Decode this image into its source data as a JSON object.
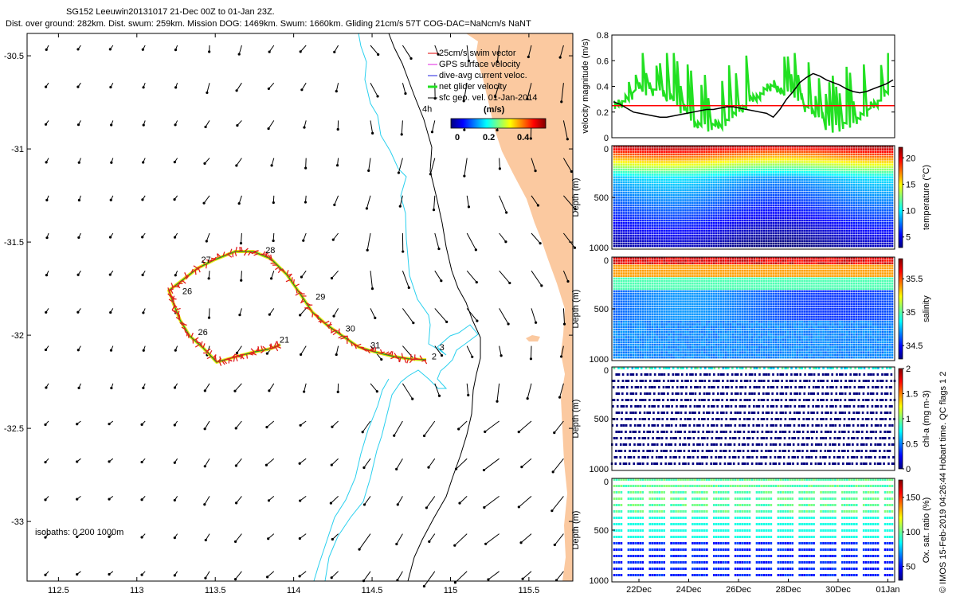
{
  "header": {
    "title_line1": "SG152 Leeuwin20131017 21-Dec 00Z to 01-Jan 23Z.",
    "title_line2": "Dist. over ground: 282km. Dist. swum: 259km. Mission DOG: 1469km. Swum: 1660km. Gliding 21cm/s 57T COG-DAC=NaNcm/s NaNT"
  },
  "credit": "© IMOS 15-Feb-2019 04:26:44 Hobart time. QC flags 1  2",
  "colors": {
    "land": "#fbc9a0",
    "isobath_200": "#2ad0ee",
    "isobath_1000": "#000000",
    "track": "#e12020",
    "track_under": "#f0ea1c",
    "track_dac": "#20a020",
    "net_velocity": "#22e022",
    "geo_velocity": "#000000",
    "threshold": "#ff0000"
  },
  "chart_data": [
    {
      "type": "map",
      "xlim": [
        112.3,
        115.78
      ],
      "ylim": [
        -33.32,
        -30.38
      ],
      "x_ticks": [
        "112.5",
        "113",
        "113.5",
        "114",
        "114.5",
        "115",
        "115.5"
      ],
      "y_ticks": [
        "-30.5",
        "-31",
        "-31.5",
        "-32",
        "-32.5",
        "-33"
      ],
      "legend": {
        "items": [
          "25cm/s swim vector",
          "GPS surface velocity",
          "dive-avg current veloc.",
          "net glider velocity",
          "sfc geo. vel. 01-Jan-2014"
        ],
        "colorbar_title": "(m/s)",
        "colorbar_ticks": [
          "0",
          "0.2",
          "0.4"
        ]
      },
      "isobaths_label": "isobaths: 0   200  1000m",
      "track_labels": [
        {
          "text": "21",
          "lon": 113.91,
          "lat": -32.04
        },
        {
          "text": "2",
          "lon": 114.88,
          "lat": -32.13
        },
        {
          "text": "27",
          "lon": 113.41,
          "lat": -31.61
        },
        {
          "text": "28",
          "lon": 113.82,
          "lat": -31.56
        },
        {
          "text": "26",
          "lon": 113.29,
          "lat": -31.78
        },
        {
          "text": "29",
          "lon": 114.14,
          "lat": -31.81
        },
        {
          "text": "30",
          "lon": 114.33,
          "lat": -31.98
        },
        {
          "text": "31",
          "lon": 114.49,
          "lat": -32.07
        },
        {
          "text": "4h",
          "lon": 114.82,
          "lat": -30.8
        },
        {
          "text": "3",
          "lon": 114.93,
          "lat": -32.08
        },
        {
          "text": "26",
          "lon": 113.39,
          "lat": -32.0
        }
      ]
    },
    {
      "type": "line",
      "ylabel": "velocity magnitude (m/s)",
      "ylim": [
        0,
        0.8
      ],
      "y_ticks": [
        "0",
        "0.2",
        "0.4",
        "0.6",
        "0.8"
      ],
      "threshold": 0.25,
      "geo_velocity": [
        0.28,
        0.26,
        0.23,
        0.2,
        0.19,
        0.18,
        0.17,
        0.16,
        0.16,
        0.17,
        0.18,
        0.19,
        0.2,
        0.21,
        0.22,
        0.22,
        0.23,
        0.24,
        0.24,
        0.23,
        0.22,
        0.21,
        0.2,
        0.19,
        0.16,
        0.22,
        0.3,
        0.36,
        0.43,
        0.47,
        0.5,
        0.48,
        0.45,
        0.43,
        0.41,
        0.38,
        0.36,
        0.35,
        0.36,
        0.38,
        0.4,
        0.42,
        0.45
      ]
    },
    {
      "type": "heatmap",
      "ylabel": "Depth (m)",
      "clabel": "temperature (°C)",
      "y_ticks": [
        "0",
        "500",
        "1000"
      ],
      "cbar_ticks": [
        "5",
        "10",
        "15",
        "20"
      ],
      "crange": [
        3,
        22
      ]
    },
    {
      "type": "heatmap",
      "ylabel": "Depth (m)",
      "clabel": "salinity",
      "y_ticks": [
        "0",
        "500",
        "1000"
      ],
      "cbar_ticks": [
        "34.5",
        "35",
        "35.5"
      ],
      "crange": [
        34.3,
        35.8
      ]
    },
    {
      "type": "heatmap",
      "ylabel": "Depth (m)",
      "clabel": "chl-a (mg m-3)",
      "y_ticks": [
        "0",
        "500",
        "1000"
      ],
      "cbar_ticks": [
        "0",
        "0.5",
        "1",
        "1.5",
        "2"
      ],
      "crange": [
        0,
        2
      ]
    },
    {
      "type": "heatmap",
      "ylabel": "Depth (m)",
      "clabel": "Ox. sat. ratio (%)",
      "y_ticks": [
        "0",
        "500",
        "1000"
      ],
      "cbar_ticks": [
        "50",
        "100",
        "150"
      ],
      "crange": [
        30,
        175
      ],
      "x_ticks": [
        "22Dec",
        "24Dec",
        "26Dec",
        "28Dec",
        "30Dec",
        "01Jan"
      ]
    }
  ]
}
